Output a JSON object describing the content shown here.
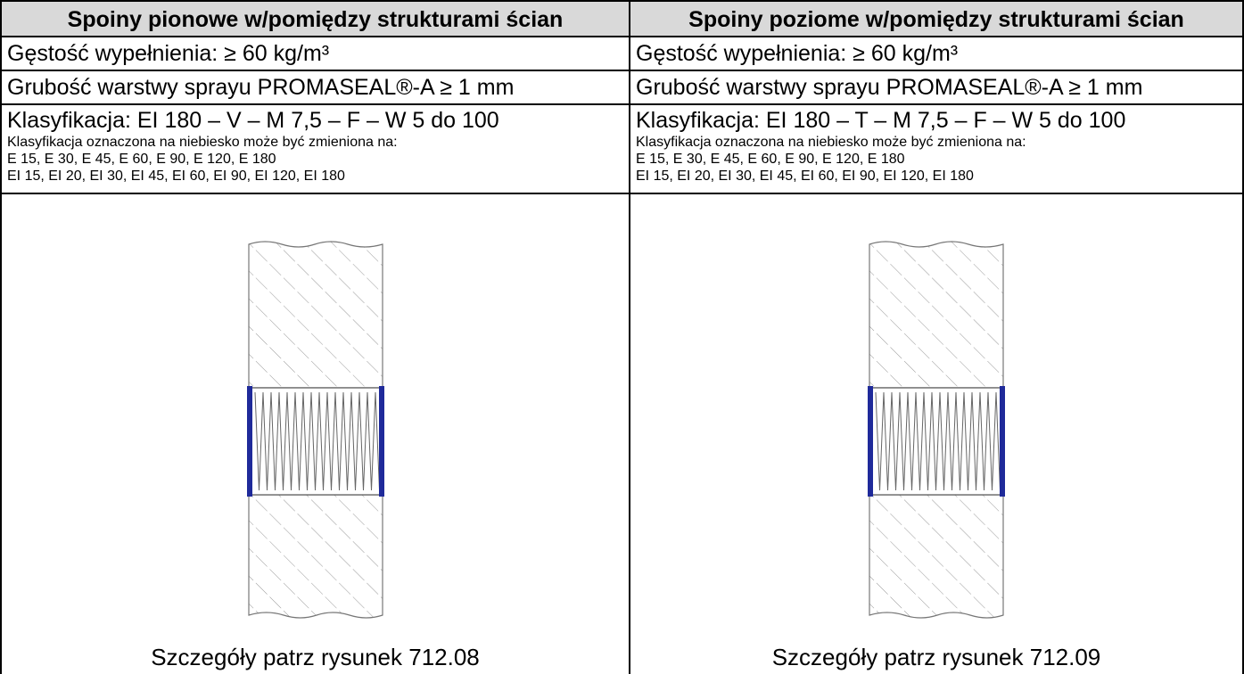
{
  "columns": [
    {
      "header": "Spoiny pionowe w/pomiędzy strukturami ścian",
      "density": "Gęstość wypełnienia: ≥ 60 kg/m³",
      "thickness": "Grubość warstwy sprayu PROMASEAL®-A ≥ 1 mm",
      "classification": "Klasyfikacja: EI 180 – V – M 7,5 – F – W 5 do 100",
      "notes": [
        "Klasyfikacja oznaczona na niebiesko może być zmieniona na:",
        "E 15, E 30, E 45, E 60, E 90, E 120, E 180",
        "EI 15, EI 20, EI 30, EI 45, EI 60, EI 90, EI 120, EI 180"
      ],
      "caption": "Szczegóły patrz rysunek 712.08"
    },
    {
      "header": "Spoiny poziome w/pomiędzy strukturami ścian",
      "density": "Gęstość wypełnienia: ≥ 60 kg/m³",
      "thickness": "Grubość warstwy sprayu PROMASEAL®-A ≥ 1 mm",
      "classification": "Klasyfikacja: EI 180 – T – M 7,5 – F – W 5 do 100",
      "notes": [
        "Klasyfikacja oznaczona na niebiesko może być zmieniona na:",
        "E 15, E 30, E 45, E 60, E 90, E 120, E 180",
        "EI 15, EI 20, EI 30, EI 45, EI 60, EI 90, EI 120, EI 180"
      ],
      "caption": "Szczegóły patrz rysunek 712.09"
    }
  ]
}
